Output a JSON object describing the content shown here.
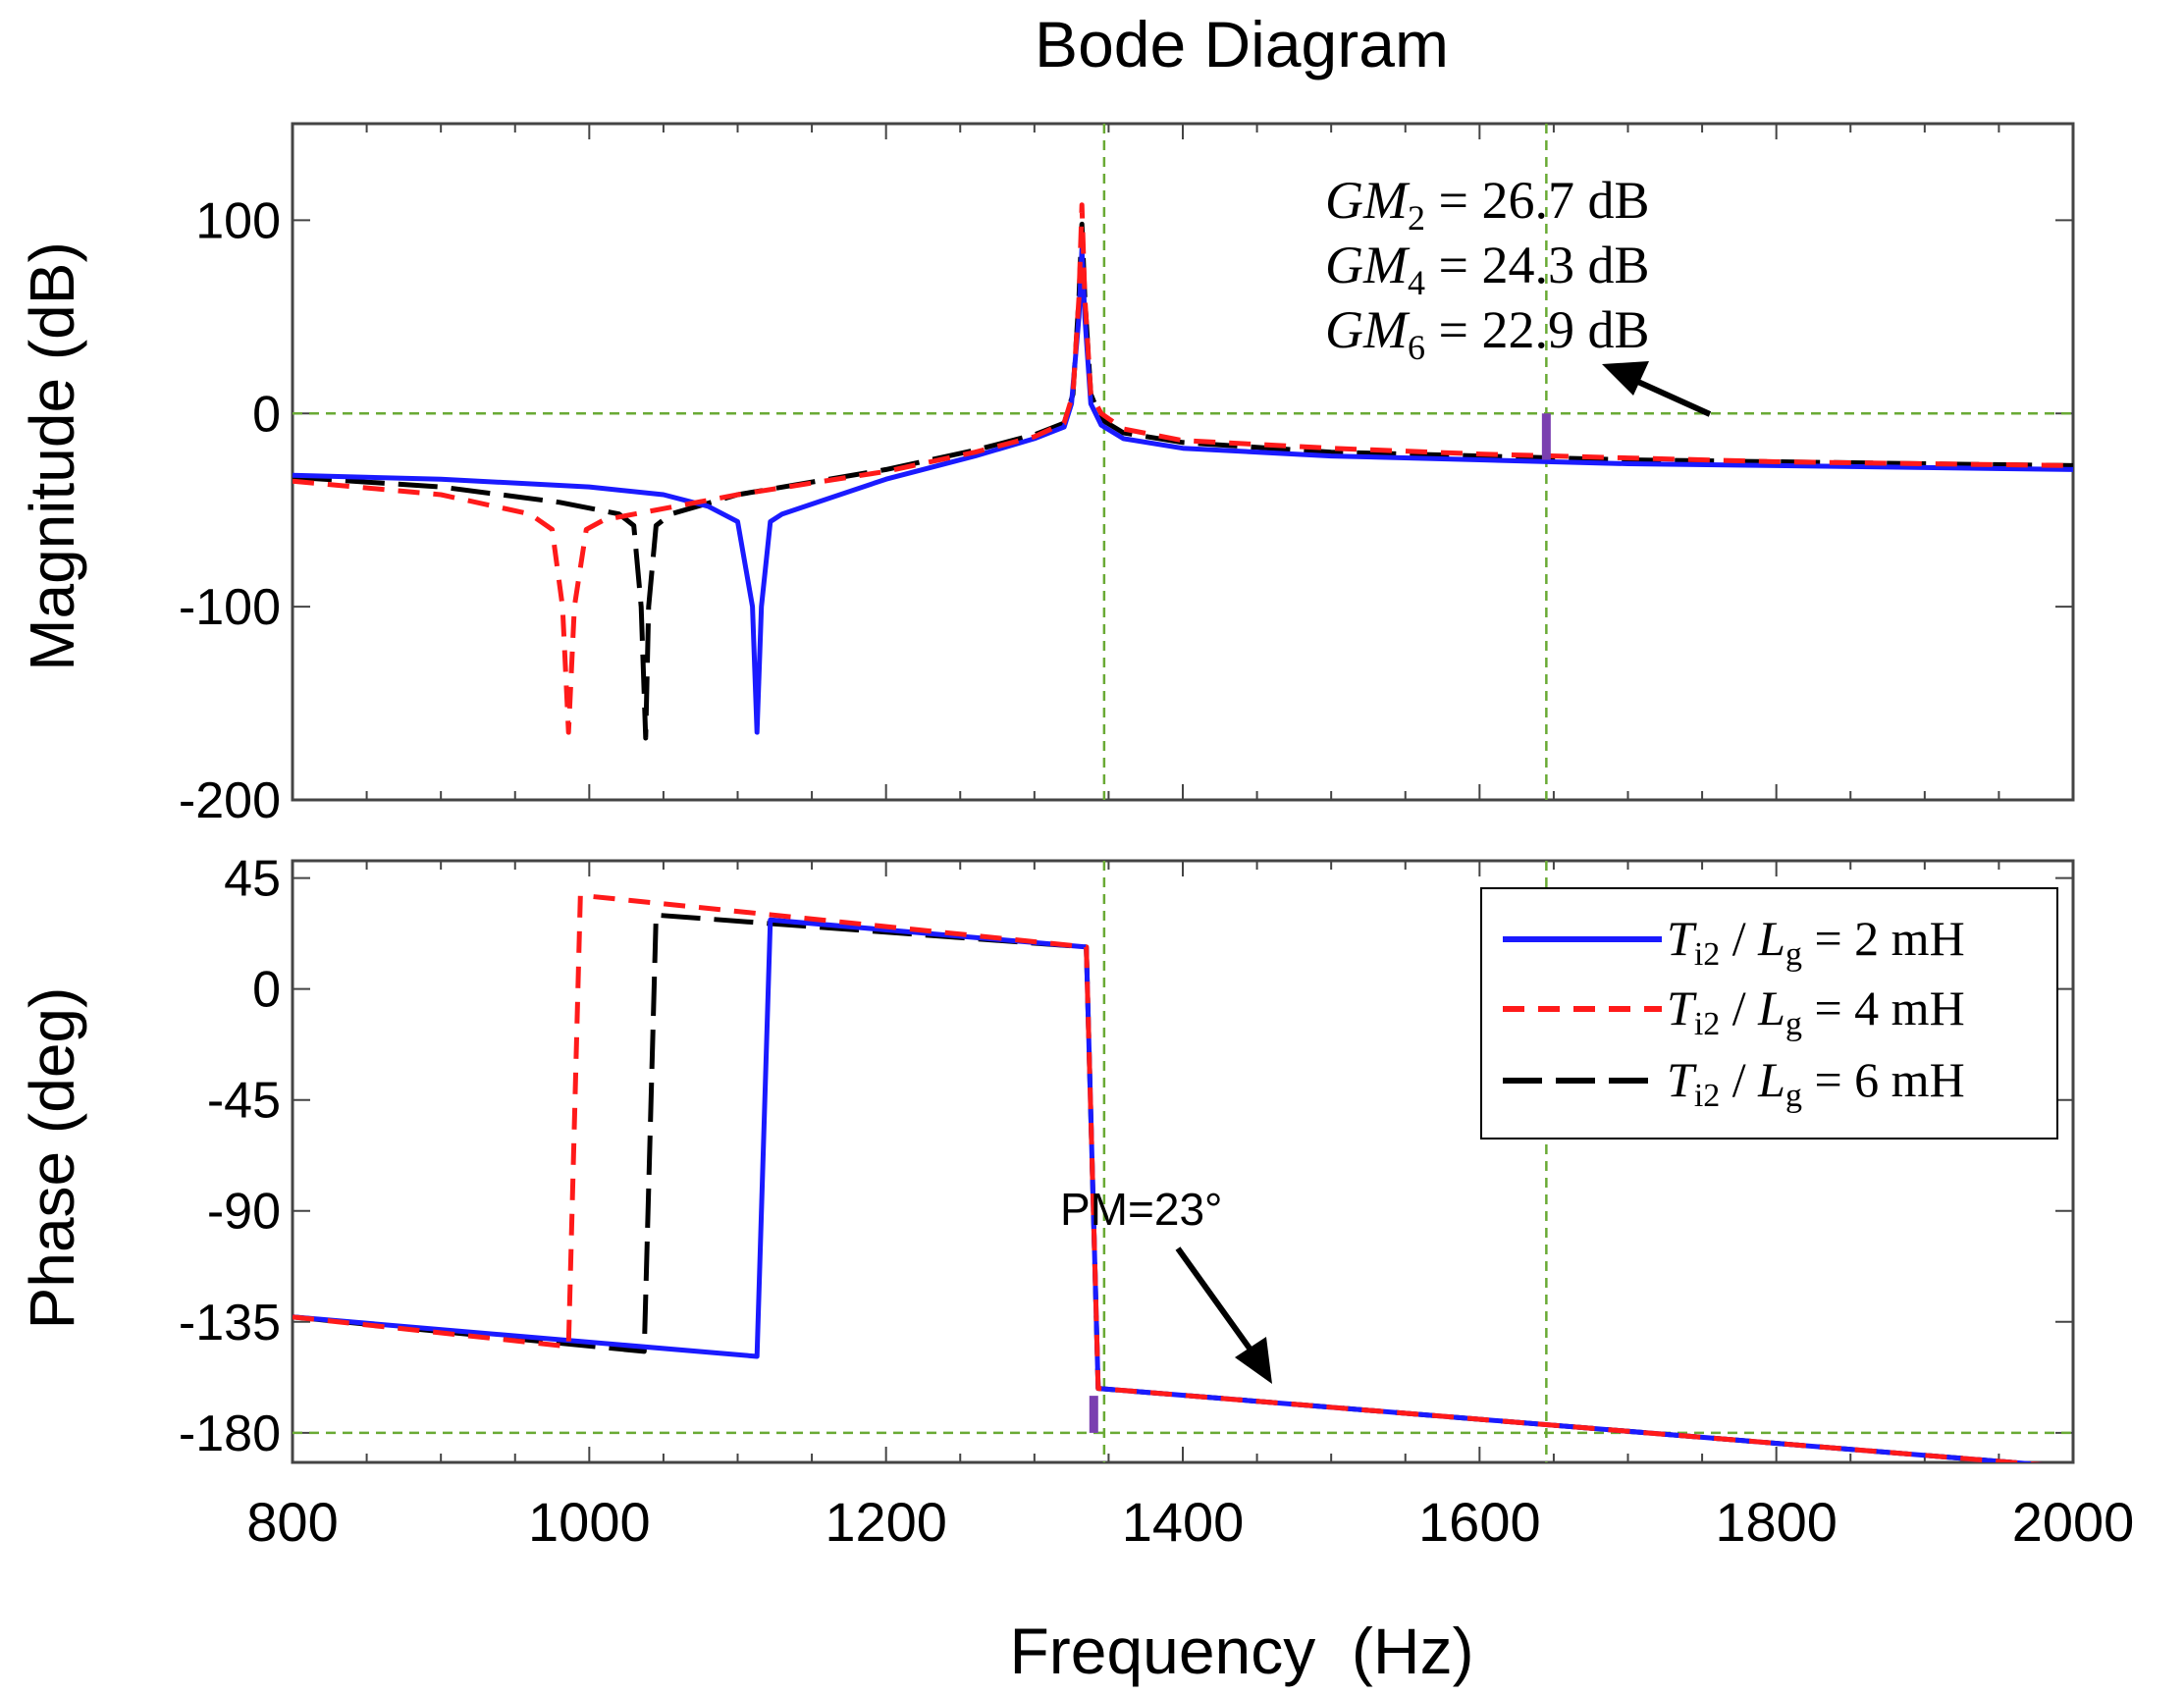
{
  "chart_data": {
    "type": "line",
    "title": "Bode Diagram",
    "xlabel": "Frequency  (Hz)",
    "xlim": [
      800,
      2000
    ],
    "x_ticks": [
      800,
      1000,
      1200,
      1400,
      1600,
      1800,
      2000
    ],
    "x_tick_labels": [
      "800",
      "1000",
      "1200",
      "1400",
      "1600",
      "1800",
      "2000"
    ],
    "subplots": [
      {
        "name": "magnitude",
        "ylabel": "Magnitude (dB)",
        "ylim": [
          -200,
          150
        ],
        "y_ticks": [
          100,
          0,
          -100,
          -200
        ],
        "y_tick_labels": [
          "100",
          "0",
          "-100",
          "-200"
        ]
      },
      {
        "name": "phase",
        "ylabel": "Phase (deg)",
        "ylim": [
          -192,
          52
        ],
        "y_ticks": [
          45,
          0,
          -45,
          -90,
          -135,
          -180
        ],
        "y_tick_labels": [
          "45",
          "0",
          "-45",
          "-90",
          "-135",
          "-180"
        ]
      }
    ],
    "reference_lines": {
      "magnitude_zero_db": 0,
      "phase_minus_180": -180,
      "crossover_frequency": 1347,
      "phase_crossover_frequency": 1645
    },
    "series": [
      {
        "name": "Ti2 / Lg = 2 mH",
        "color": "#1a1aff",
        "style": "solid",
        "magnitude": {
          "x": [
            800,
            900,
            1000,
            1050,
            1080,
            1100,
            1110,
            1113,
            1116,
            1122,
            1130,
            1200,
            1260,
            1300,
            1320,
            1325,
            1330,
            1332,
            1334,
            1338,
            1345,
            1360,
            1400,
            1500,
            1600,
            1700,
            1800,
            1900,
            2000
          ],
          "y": [
            -32,
            -34,
            -38,
            -42,
            -48,
            -56,
            -100,
            -165,
            -100,
            -56,
            -52,
            -34,
            -22,
            -13,
            -7,
            5,
            50,
            85,
            50,
            5,
            -6,
            -13,
            -18,
            -22,
            -24,
            -26,
            -27,
            -28,
            -29
          ]
        },
        "phase": {
          "x": [
            800,
            1113,
            1113,
            1122,
            1122,
            1335,
            1335,
            1343,
            2000
          ],
          "y": [
            -133,
            -149,
            -149,
            28,
            28,
            17,
            17,
            -162,
            -194
          ]
        }
      },
      {
        "name": "Ti2 / Lg = 4 mH",
        "color": "#ff1a1a",
        "style": "dashed",
        "magnitude": {
          "x": [
            800,
            900,
            960,
            975,
            982,
            986,
            990,
            998,
            1010,
            1100,
            1200,
            1260,
            1300,
            1320,
            1326,
            1330,
            1332,
            1334,
            1338,
            1345,
            1360,
            1400,
            1500,
            1600,
            1700,
            1800,
            1900,
            2000
          ],
          "y": [
            -35,
            -42,
            -52,
            -60,
            -100,
            -165,
            -100,
            -60,
            -55,
            -42,
            -30,
            -20,
            -12,
            -5,
            10,
            60,
            108,
            60,
            10,
            0,
            -8,
            -14,
            -18,
            -21,
            -23,
            -25,
            -26,
            -27
          ]
        },
        "phase": {
          "x": [
            800,
            986,
            986,
            994,
            994,
            1335,
            1335,
            1343,
            2000
          ],
          "y": [
            -133,
            -145,
            -145,
            38,
            38,
            17,
            17,
            -162,
            -194
          ]
        }
      },
      {
        "name": "Ti2 / Lg = 6 mH",
        "color": "#000000",
        "style": "longdash",
        "magnitude": {
          "x": [
            800,
            900,
            980,
            1020,
            1030,
            1035,
            1038,
            1040,
            1045,
            1055,
            1100,
            1200,
            1260,
            1300,
            1320,
            1326,
            1330,
            1332,
            1334,
            1338,
            1345,
            1360,
            1400,
            1500,
            1600,
            1700,
            1800,
            1900,
            2000
          ],
          "y": [
            -33,
            -38,
            -46,
            -52,
            -58,
            -100,
            -168,
            -100,
            -58,
            -52,
            -42,
            -29,
            -19,
            -11,
            -5,
            10,
            60,
            98,
            60,
            10,
            -3,
            -10,
            -15,
            -20,
            -22,
            -24,
            -25,
            -26,
            -27
          ]
        },
        "phase": {
          "x": [
            800,
            1037,
            1037,
            1045,
            1045,
            1335,
            1335,
            1343,
            2000
          ],
          "y": [
            -133,
            -147,
            -147,
            30,
            30,
            17,
            17,
            -162,
            -194
          ]
        }
      }
    ],
    "markers": [
      {
        "name": "gain-margin-marker",
        "subplot": "magnitude",
        "x": 1645,
        "y1": -24,
        "y2": 0,
        "color": "#7a3fb0"
      },
      {
        "name": "phase-margin-marker",
        "subplot": "phase",
        "x": 1340,
        "y1": -180,
        "y2": -165,
        "color": "#7a3fb0"
      }
    ],
    "annotations": {
      "gain_margins": [
        {
          "label": "GM",
          "sub": "2",
          "value": " = 26.7 dB"
        },
        {
          "label": "GM",
          "sub": "4",
          "value": " = 24.3 dB"
        },
        {
          "label": "GM",
          "sub": "6",
          "value": " = 22.9 dB"
        }
      ],
      "phase_margin": "PM=23°"
    },
    "legend": {
      "placement": "top-right of phase subplot",
      "entries": [
        {
          "sym": "T",
          "sub": "i2",
          "mid": " / ",
          "sym2": "L",
          "sub2": "g",
          "value": " = 2 mH"
        },
        {
          "sym": "T",
          "sub": "i2",
          "mid": " / ",
          "sym2": "L",
          "sub2": "g",
          "value": " = 4 mH"
        },
        {
          "sym": "T",
          "sub": "i2",
          "mid": " / ",
          "sym2": "L",
          "sub2": "g",
          "value": " = 6 mH"
        }
      ]
    }
  }
}
